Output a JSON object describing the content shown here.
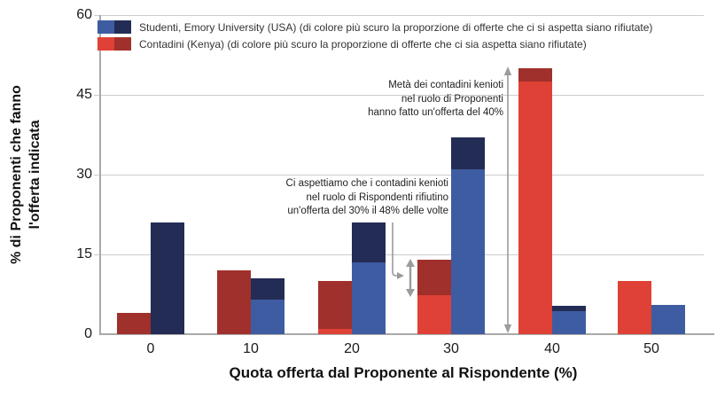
{
  "colors": {
    "student_light": "#3e5ca1",
    "student_dark": "#232c54",
    "farmer_light": "#df4136",
    "farmer_dark": "#a0302b",
    "gridline": "#cccccc",
    "axis": "#a9a9a9",
    "arrow": "#9b9b9b"
  },
  "legend": {
    "items": [
      {
        "label": "Studenti, Emory University (USA) (di colore più scuro la proporzione di offerte che ci si aspetta siano rifiutate)",
        "color_light": "#3e5ca1",
        "color_dark": "#232c54"
      },
      {
        "label": "Contadini (Kenya) (di colore più scuro la proporzione di offerte che ci sia aspetta siano rifiutate)",
        "color_light": "#df4136",
        "color_dark": "#a0302b"
      }
    ]
  },
  "axes": {
    "y_title_line1": "% di Proponenti che fanno",
    "y_title_line2": "l'offerta indicata",
    "x_title": "Quota offerta dal Proponente al Rispondente (%)",
    "y_ticks": [
      0,
      15,
      30,
      45,
      60
    ],
    "x_ticks": [
      "0",
      "10",
      "20",
      "30",
      "40",
      "50"
    ]
  },
  "annotations": {
    "offer40": {
      "lines": [
        "Metà  dei contadini kenioti",
        "nel  ruolo di  Proponenti",
        "hanno  fatto  un'offerta del 40%"
      ]
    },
    "reject30": {
      "lines": [
        "Ci aspettiamo che i contadini kenioti",
        "nel ruolo di Rispondenti rifiutino",
        "un'offerta del 30% il 48% delle volte"
      ]
    }
  },
  "chart_data": {
    "type": "bar",
    "title": "",
    "xlabel": "Quota offerta dal Proponente al Rispondente (%)",
    "ylabel": "% di Proponenti che fanno l'offerta indicata",
    "categories": [
      0,
      10,
      20,
      30,
      40,
      50
    ],
    "ylim": [
      0,
      60
    ],
    "y_ticks": [
      0,
      15,
      30,
      45,
      60
    ],
    "grid": true,
    "legend_position": "top-left",
    "bar_note": "Each bar is stacked: darker shade = proportion of offers expected to be rejected",
    "series": [
      {
        "name": "Contadini (Kenya)",
        "position_in_group": "left",
        "color_light": "#df4136",
        "color_dark": "#a0302b",
        "totals": [
          4,
          12,
          10,
          14,
          50,
          10
        ],
        "expected_rejected": [
          4,
          12,
          9,
          6.7,
          2.5,
          0
        ]
      },
      {
        "name": "Studenti, Emory University (USA)",
        "position_in_group": "right",
        "color_light": "#3e5ca1",
        "color_dark": "#232c54",
        "totals": [
          21,
          10.5,
          21,
          37,
          5.3,
          5.5
        ],
        "expected_rejected": [
          21,
          4,
          7.5,
          6,
          1,
          0
        ]
      }
    ]
  }
}
